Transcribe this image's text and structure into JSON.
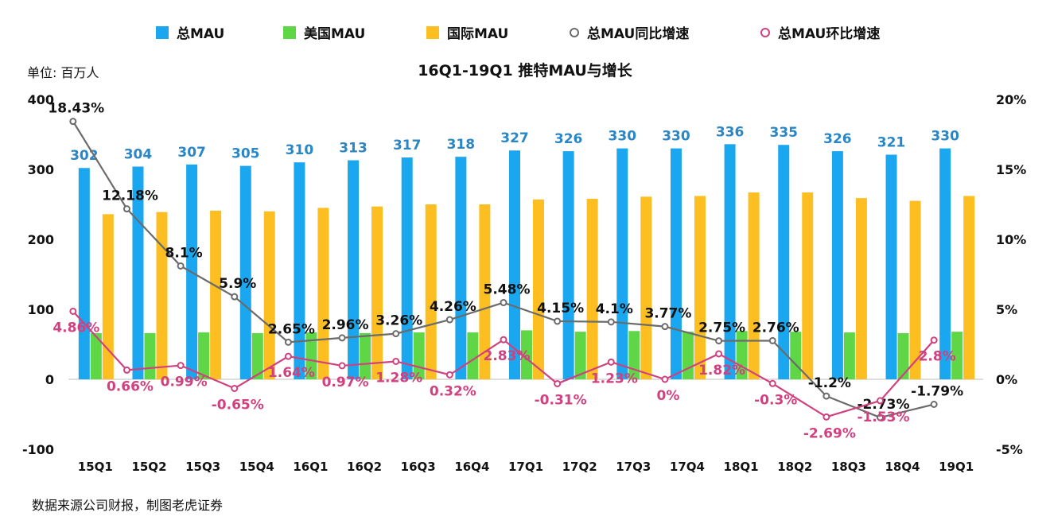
{
  "title": "16Q1-19Q1 推特MAU与增长",
  "unit_label": "单位: 百万人",
  "source_note": "数据来源公司财报，制图老虎证券",
  "colors": {
    "total": "#1AA7F0",
    "us": "#5ED646",
    "intl": "#FDBE21",
    "yoy": "#6B6B6B",
    "qoq": "#D1407F"
  },
  "chart_data": {
    "type": "bar",
    "categories": [
      "15Q1",
      "15Q2",
      "15Q3",
      "15Q4",
      "16Q1",
      "16Q2",
      "16Q3",
      "16Q4",
      "17Q1",
      "17Q2",
      "17Q3",
      "17Q4",
      "18Q1",
      "18Q2",
      "18Q3",
      "18Q4",
      "19Q1"
    ],
    "series": [
      {
        "name": "总MAU",
        "kind": "bar",
        "axis": "left",
        "values": [
          302,
          304,
          307,
          305,
          310,
          313,
          317,
          318,
          327,
          326,
          330,
          330,
          336,
          335,
          326,
          321,
          330
        ]
      },
      {
        "name": "美国MAU",
        "kind": "bar",
        "axis": "left",
        "values": [
          66,
          66,
          67,
          66,
          67,
          66,
          67,
          67,
          70,
          68,
          69,
          68,
          69,
          68,
          67,
          66,
          68
        ]
      },
      {
        "name": "国际MAU",
        "kind": "bar",
        "axis": "left",
        "values": [
          236,
          239,
          241,
          240,
          245,
          247,
          250,
          250,
          257,
          258,
          261,
          262,
          267,
          267,
          259,
          255,
          262
        ]
      },
      {
        "name": "总MAU同比增速",
        "kind": "line",
        "axis": "right",
        "values": [
          18.43,
          12.18,
          8.1,
          5.9,
          2.65,
          2.96,
          3.26,
          4.26,
          5.48,
          4.15,
          4.1,
          3.77,
          2.75,
          2.76,
          -1.2,
          -2.73,
          -1.79
        ],
        "labels": [
          "18.43%",
          "12.18%",
          "8.1%",
          "5.9%",
          "2.65%",
          "2.96%",
          "3.26%",
          "4.26%",
          "5.48%",
          "4.15%",
          "4.1%",
          "3.77%",
          "2.75%",
          "2.76%",
          "-1.2%",
          "-2.73%",
          "-1.79%"
        ]
      },
      {
        "name": "总MAU环比增速",
        "kind": "line",
        "axis": "right",
        "values": [
          4.86,
          0.66,
          0.99,
          -0.65,
          1.64,
          0.97,
          1.28,
          0.32,
          2.83,
          -0.31,
          1.23,
          0,
          1.82,
          -0.3,
          -2.69,
          -1.53,
          2.8
        ],
        "labels": [
          "4.86%",
          "0.66%",
          "0.99%",
          "-0.65%",
          "1.64%",
          "0.97%",
          "1.28%",
          "0.32%",
          "2.83%",
          "-0.31%",
          "1.23%",
          "0%",
          "1.82%",
          "-0.3%",
          "-2.69%",
          "-1.53%",
          "2.8%"
        ]
      }
    ],
    "left_axis": {
      "min": -100,
      "max": 400,
      "ticks": [
        "400",
        "300",
        "200",
        "100",
        "0",
        "-100"
      ]
    },
    "right_axis": {
      "min": -5,
      "max": 20,
      "ticks": [
        "20%",
        "15%",
        "10%",
        "5%",
        "0%",
        "-5%"
      ]
    },
    "grid": false,
    "legend_position": "top"
  }
}
